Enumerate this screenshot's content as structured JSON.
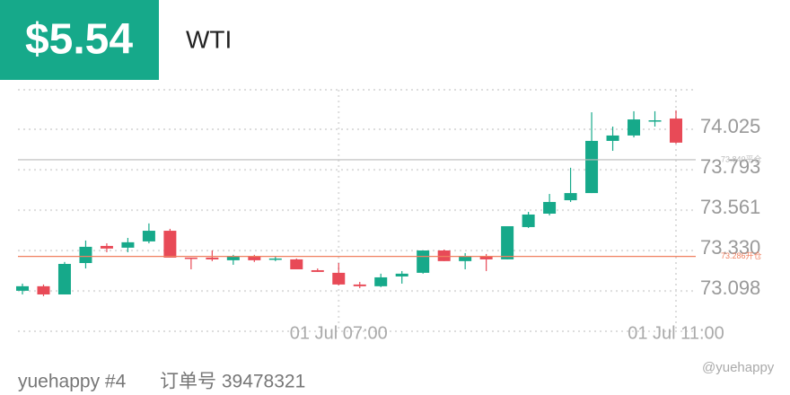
{
  "header": {
    "amount": "$5.54",
    "symbol": "WTI"
  },
  "chart_data": {
    "type": "candlestick",
    "categories": [
      null,
      null,
      null,
      null,
      null,
      null,
      null,
      null,
      null,
      null,
      null,
      null,
      null,
      null,
      null,
      "01 Jul 07:00",
      null,
      null,
      null,
      null,
      null,
      null,
      null,
      null,
      null,
      null,
      null,
      null,
      null,
      null,
      null,
      "01 Jul 11:00"
    ],
    "open": [
      73.089,
      73.115,
      73.068,
      73.248,
      73.346,
      73.336,
      73.372,
      73.433,
      73.279,
      73.279,
      73.264,
      73.284,
      73.269,
      73.269,
      73.207,
      73.192,
      73.125,
      73.115,
      73.171,
      73.192,
      73.32,
      73.259,
      73.289,
      73.269,
      73.454,
      73.531,
      73.608,
      73.649,
      73.948,
      73.979,
      74.061,
      74.076
    ],
    "high": [
      73.13,
      73.125,
      73.254,
      73.377,
      73.361,
      73.392,
      73.475,
      73.444,
      73.279,
      73.32,
      73.295,
      73.295,
      73.284,
      73.274,
      73.217,
      73.248,
      73.14,
      73.187,
      73.202,
      73.32,
      73.325,
      73.305,
      73.3,
      73.459,
      73.541,
      73.644,
      73.794,
      74.112,
      74.03,
      74.118,
      74.118,
      74.123
    ],
    "low": [
      73.068,
      73.058,
      73.068,
      73.217,
      73.31,
      73.31,
      73.361,
      73.279,
      73.212,
      73.259,
      73.238,
      73.254,
      73.259,
      73.212,
      73.197,
      73.12,
      73.104,
      73.11,
      73.13,
      73.187,
      73.259,
      73.212,
      73.202,
      73.269,
      73.449,
      73.521,
      73.598,
      73.649,
      73.891,
      73.968,
      74.03,
      73.932
    ],
    "close": [
      73.115,
      73.068,
      73.243,
      73.341,
      73.331,
      73.367,
      73.433,
      73.279,
      73.274,
      73.269,
      73.284,
      73.264,
      73.274,
      73.212,
      73.197,
      73.125,
      73.115,
      73.166,
      73.187,
      73.32,
      73.259,
      73.289,
      73.269,
      73.459,
      73.526,
      73.598,
      73.649,
      73.948,
      73.979,
      74.071,
      74.066,
      73.938
    ],
    "up_color": "#16a98a",
    "down_color": "#e84a57",
    "ylim": [
      72.857,
      74.241
    ],
    "yticks": [
      {
        "value": 73.098,
        "label": "73.098"
      },
      {
        "value": 73.33,
        "label": "73.330"
      },
      73.561,
      73.793,
      74.025
    ],
    "grid": true,
    "reference_lines": [
      {
        "value": 73.84,
        "label": "73.840平仓",
        "color": "#bbbbbb"
      },
      {
        "value": 73.286,
        "label": "73.286开仓",
        "color": "#f08060"
      }
    ]
  },
  "footer": {
    "user": "yuehappy #4",
    "order": "订单号 39478321"
  },
  "watermark": "@yuehappy"
}
